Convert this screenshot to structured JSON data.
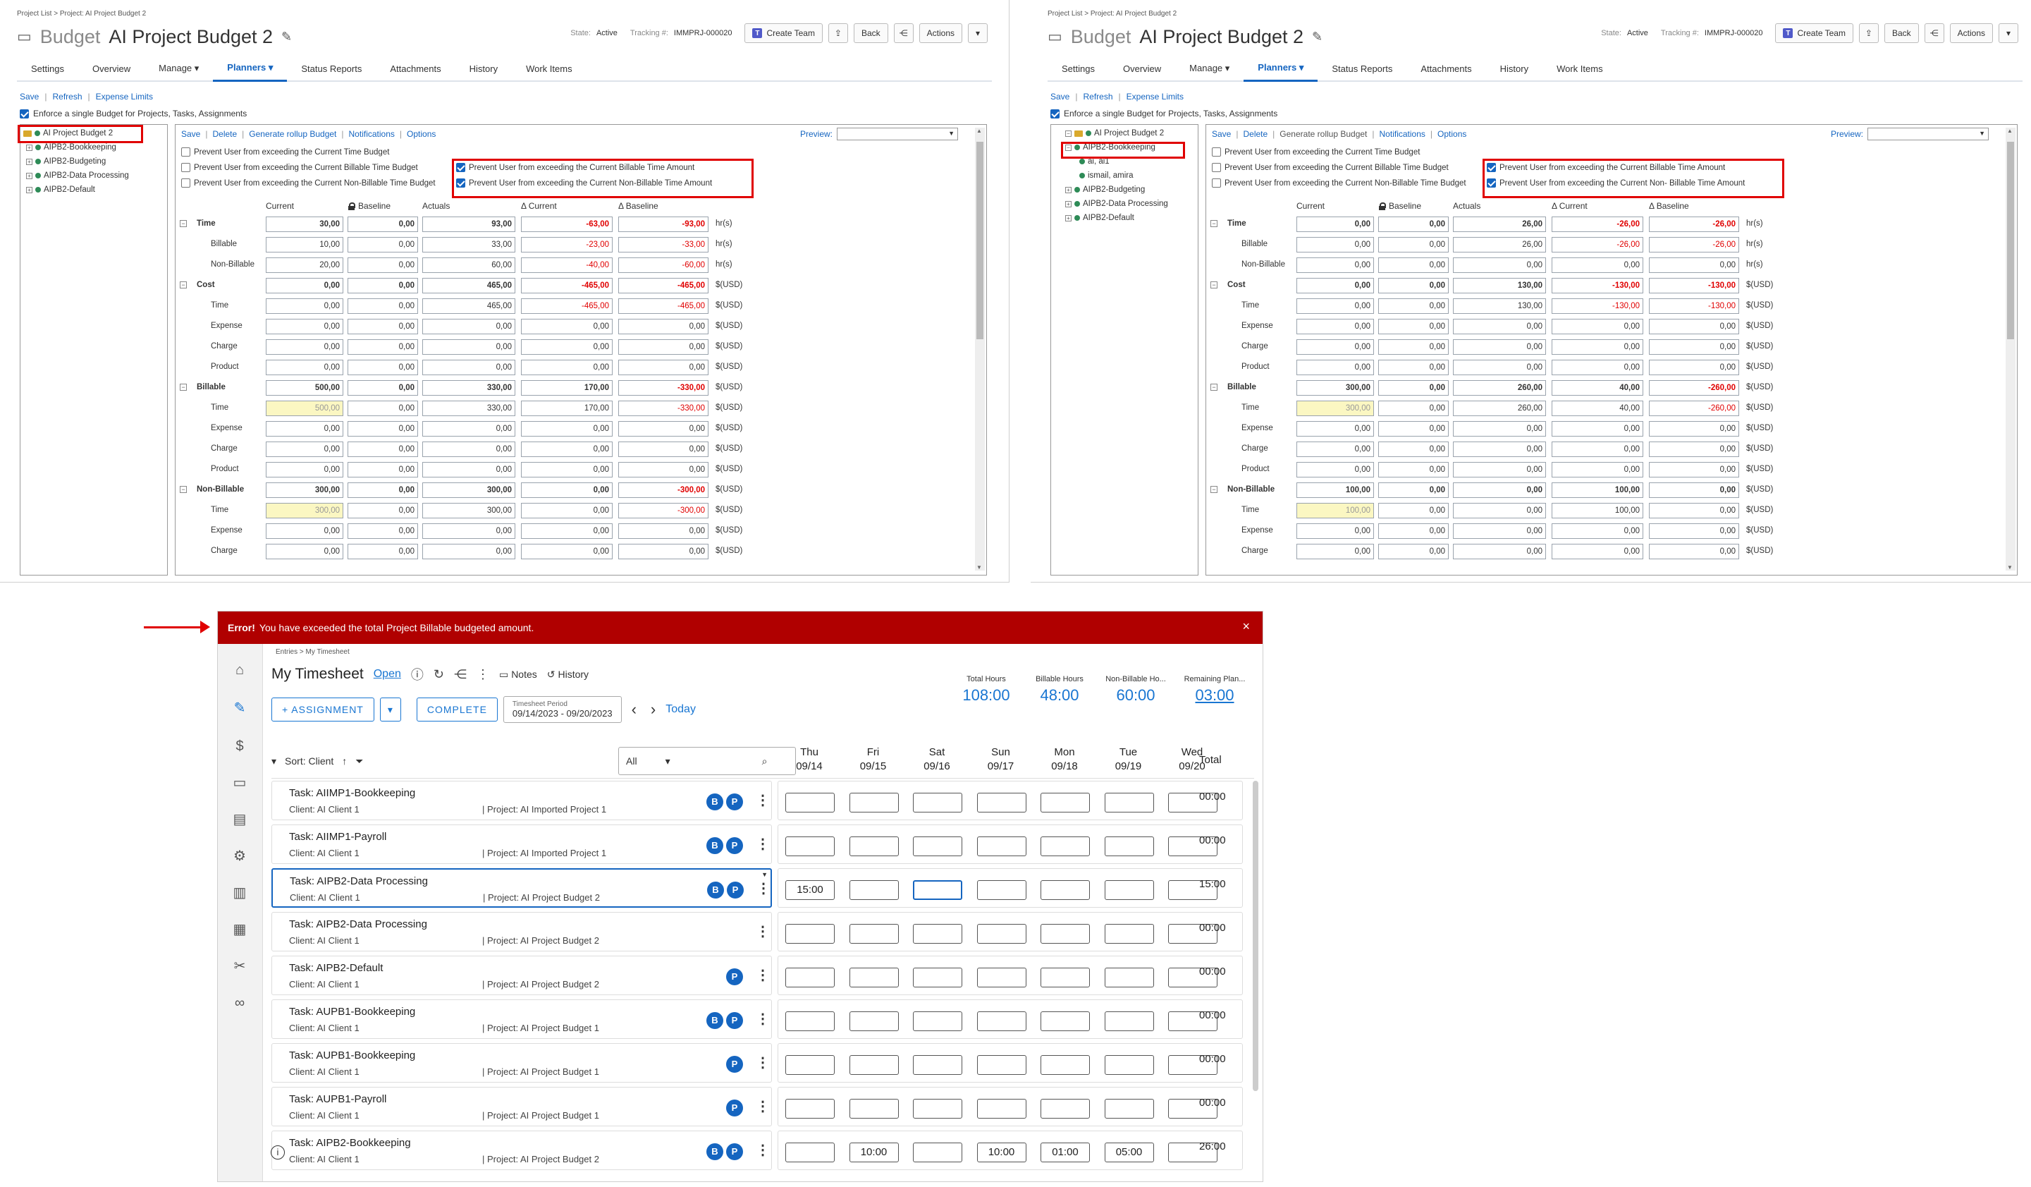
{
  "left_panel": {
    "breadcrumb": "Project List > Project: AI Project Budget 2",
    "title_prefix": "Budget",
    "title": "AI Project Budget 2",
    "state_label": "State:",
    "state_value": "Active",
    "tracking_label": "Tracking #:",
    "tracking_value": "IMMPRJ-000020",
    "create_team": "Create Team",
    "back": "Back",
    "actions": "Actions",
    "tabs": [
      "Settings",
      "Overview",
      "Manage ▾",
      "Planners ▾",
      "Status Reports",
      "Attachments",
      "History",
      "Work Items"
    ],
    "links": [
      "Save",
      "Refresh",
      "Expense Limits"
    ],
    "enforce": "Enforce a single Budget for Projects, Tasks, Assignments",
    "tree": [
      "AI Project Budget 2",
      "AIPB2-Bookkeeping",
      "AIPB2-Budgeting",
      "AIPB2-Data Processing",
      "AIPB2-Default"
    ],
    "main_links": [
      "Save",
      "Delete",
      "Generate rollup Budget",
      "Notifications",
      "Options"
    ],
    "preview": "Preview:",
    "options": [
      "Prevent User from exceeding the Current Time Budget",
      "Prevent User from exceeding the Current Billable Time Budget",
      "Prevent User from exceeding the Current Non-Billable Time Budget"
    ],
    "options_checked": [
      "Prevent User from exceeding the Current Billable Time Amount",
      "Prevent User from exceeding the Current Non-Billable Time Amount"
    ],
    "headers": [
      "Current",
      "Baseline",
      "Actuals",
      "Δ Current",
      "Δ Baseline"
    ],
    "rows": [
      {
        "label": "Time",
        "level": 0,
        "vals": [
          "30,00",
          "0,00",
          "93,00",
          "-63,00",
          "-93,00"
        ],
        "unit": "hr(s)"
      },
      {
        "label": "Billable",
        "level": 1,
        "vals": [
          "10,00",
          "0,00",
          "33,00",
          "-23,00",
          "-33,00"
        ],
        "unit": "hr(s)"
      },
      {
        "label": "Non-Billable",
        "level": 1,
        "vals": [
          "20,00",
          "0,00",
          "60,00",
          "-40,00",
          "-60,00"
        ],
        "unit": "hr(s)"
      },
      {
        "label": "Cost",
        "level": 0,
        "vals": [
          "0,00",
          "0,00",
          "465,00",
          "-465,00",
          "-465,00"
        ],
        "unit": "$(USD)"
      },
      {
        "label": "Time",
        "level": 1,
        "vals": [
          "0,00",
          "0,00",
          "465,00",
          "-465,00",
          "-465,00"
        ],
        "unit": "$(USD)"
      },
      {
        "label": "Expense",
        "level": 1,
        "vals": [
          "0,00",
          "0,00",
          "0,00",
          "0,00",
          "0,00"
        ],
        "unit": "$(USD)"
      },
      {
        "label": "Charge",
        "level": 1,
        "vals": [
          "0,00",
          "0,00",
          "0,00",
          "0,00",
          "0,00"
        ],
        "unit": "$(USD)"
      },
      {
        "label": "Product",
        "level": 1,
        "vals": [
          "0,00",
          "0,00",
          "0,00",
          "0,00",
          "0,00"
        ],
        "unit": "$(USD)"
      },
      {
        "label": "Billable",
        "level": 0,
        "vals": [
          "500,00",
          "0,00",
          "330,00",
          "170,00",
          "-330,00"
        ],
        "unit": "$(USD)"
      },
      {
        "label": "Time",
        "level": 1,
        "vals": [
          "500,00",
          "0,00",
          "330,00",
          "170,00",
          "-330,00"
        ],
        "unit": "$(USD)",
        "hl": true
      },
      {
        "label": "Expense",
        "level": 1,
        "vals": [
          "0,00",
          "0,00",
          "0,00",
          "0,00",
          "0,00"
        ],
        "unit": "$(USD)"
      },
      {
        "label": "Charge",
        "level": 1,
        "vals": [
          "0,00",
          "0,00",
          "0,00",
          "0,00",
          "0,00"
        ],
        "unit": "$(USD)"
      },
      {
        "label": "Product",
        "level": 1,
        "vals": [
          "0,00",
          "0,00",
          "0,00",
          "0,00",
          "0,00"
        ],
        "unit": "$(USD)"
      },
      {
        "label": "Non-Billable",
        "level": 0,
        "vals": [
          "300,00",
          "0,00",
          "300,00",
          "0,00",
          "-300,00"
        ],
        "unit": "$(USD)"
      },
      {
        "label": "Time",
        "level": 1,
        "vals": [
          "300,00",
          "0,00",
          "300,00",
          "0,00",
          "-300,00"
        ],
        "unit": "$(USD)",
        "hl": true
      },
      {
        "label": "Expense",
        "level": 1,
        "vals": [
          "0,00",
          "0,00",
          "0,00",
          "0,00",
          "0,00"
        ],
        "unit": "$(USD)"
      },
      {
        "label": "Charge",
        "level": 1,
        "vals": [
          "0,00",
          "0,00",
          "0,00",
          "0,00",
          "0,00"
        ],
        "unit": "$(USD)"
      }
    ]
  },
  "right_panel": {
    "breadcrumb": "Project List > Project: AI Project Budget 2",
    "title_prefix": "Budget",
    "title": "AI Project Budget 2",
    "state_label": "State:",
    "state_value": "Active",
    "tracking_label": "Tracking #:",
    "tracking_value": "IMMPRJ-000020",
    "create_team": "Create Team",
    "back": "Back",
    "actions": "Actions",
    "tabs": [
      "Settings",
      "Overview",
      "Manage ▾",
      "Planners ▾",
      "Status Reports",
      "Attachments",
      "History",
      "Work Items"
    ],
    "links": [
      "Save",
      "Refresh",
      "Expense Limits"
    ],
    "enforce": "Enforce a single Budget for Projects, Tasks, Assignments",
    "tree": [
      "AI Project Budget 2",
      "AIPB2-Bookkeeping",
      "ai, ai1",
      "ismail, amira",
      "AIPB2-Budgeting",
      "AIPB2-Data Processing",
      "AIPB2-Default"
    ],
    "main_links": [
      "Save",
      "Delete",
      "Generate rollup Budget",
      "Notifications",
      "Options"
    ],
    "preview": "Preview:",
    "options": [
      "Prevent User from exceeding the Current Time Budget",
      "Prevent User from exceeding the Current Billable Time Budget",
      "Prevent User from exceeding the Current Non-Billable Time Budget"
    ],
    "options_checked": [
      "Prevent User from exceeding the Current Billable Time Amount",
      "Prevent User from exceeding the Current Non- Billable Time Amount"
    ],
    "headers": [
      "Current",
      "Baseline",
      "Actuals",
      "Δ Current",
      "Δ Baseline"
    ],
    "rows": [
      {
        "label": "Time",
        "level": 0,
        "vals": [
          "0,00",
          "0,00",
          "26,00",
          "-26,00",
          "-26,00"
        ],
        "unit": "hr(s)"
      },
      {
        "label": "Billable",
        "level": 1,
        "vals": [
          "0,00",
          "0,00",
          "26,00",
          "-26,00",
          "-26,00"
        ],
        "unit": "hr(s)"
      },
      {
        "label": "Non-Billable",
        "level": 1,
        "vals": [
          "0,00",
          "0,00",
          "0,00",
          "0,00",
          "0,00"
        ],
        "unit": "hr(s)"
      },
      {
        "label": "Cost",
        "level": 0,
        "vals": [
          "0,00",
          "0,00",
          "130,00",
          "-130,00",
          "-130,00"
        ],
        "unit": "$(USD)"
      },
      {
        "label": "Time",
        "level": 1,
        "vals": [
          "0,00",
          "0,00",
          "130,00",
          "-130,00",
          "-130,00"
        ],
        "unit": "$(USD)"
      },
      {
        "label": "Expense",
        "level": 1,
        "vals": [
          "0,00",
          "0,00",
          "0,00",
          "0,00",
          "0,00"
        ],
        "unit": "$(USD)"
      },
      {
        "label": "Charge",
        "level": 1,
        "vals": [
          "0,00",
          "0,00",
          "0,00",
          "0,00",
          "0,00"
        ],
        "unit": "$(USD)"
      },
      {
        "label": "Product",
        "level": 1,
        "vals": [
          "0,00",
          "0,00",
          "0,00",
          "0,00",
          "0,00"
        ],
        "unit": "$(USD)"
      },
      {
        "label": "Billable",
        "level": 0,
        "vals": [
          "300,00",
          "0,00",
          "260,00",
          "40,00",
          "-260,00"
        ],
        "unit": "$(USD)"
      },
      {
        "label": "Time",
        "level": 1,
        "vals": [
          "300,00",
          "0,00",
          "260,00",
          "40,00",
          "-260,00"
        ],
        "unit": "$(USD)",
        "hl": true
      },
      {
        "label": "Expense",
        "level": 1,
        "vals": [
          "0,00",
          "0,00",
          "0,00",
          "0,00",
          "0,00"
        ],
        "unit": "$(USD)"
      },
      {
        "label": "Charge",
        "level": 1,
        "vals": [
          "0,00",
          "0,00",
          "0,00",
          "0,00",
          "0,00"
        ],
        "unit": "$(USD)"
      },
      {
        "label": "Product",
        "level": 1,
        "vals": [
          "0,00",
          "0,00",
          "0,00",
          "0,00",
          "0,00"
        ],
        "unit": "$(USD)"
      },
      {
        "label": "Non-Billable",
        "level": 0,
        "vals": [
          "100,00",
          "0,00",
          "0,00",
          "100,00",
          "0,00"
        ],
        "unit": "$(USD)"
      },
      {
        "label": "Time",
        "level": 1,
        "vals": [
          "100,00",
          "0,00",
          "0,00",
          "100,00",
          "0,00"
        ],
        "unit": "$(USD)",
        "hl": true
      },
      {
        "label": "Expense",
        "level": 1,
        "vals": [
          "0,00",
          "0,00",
          "0,00",
          "0,00",
          "0,00"
        ],
        "unit": "$(USD)"
      },
      {
        "label": "Charge",
        "level": 1,
        "vals": [
          "0,00",
          "0,00",
          "0,00",
          "0,00",
          "0,00"
        ],
        "unit": "$(USD)"
      }
    ]
  },
  "timesheet": {
    "error_strong": "Error!",
    "error_text": "You have exceeded the total Project Billable budgeted amount.",
    "close": "×",
    "breadcrumb": "Entries > My Timesheet",
    "title": "My Timesheet",
    "status": "Open",
    "notes": "Notes",
    "history": "History",
    "assignment": "+ ASSIGNMENT",
    "complete": "COMPLETE",
    "period_label": "Timesheet Period",
    "period_value": "09/14/2023 - 09/20/2023",
    "today": "Today",
    "totals": [
      {
        "label": "Total Hours",
        "value": "108:00"
      },
      {
        "label": "Billable Hours",
        "value": "48:00"
      },
      {
        "label": "Non-Billable Ho...",
        "value": "60:00"
      },
      {
        "label": "Remaining Plan...",
        "value": "03:00"
      }
    ],
    "sort": "Sort: Client",
    "filter": "All",
    "days": [
      {
        "d": "Thu",
        "date": "09/14"
      },
      {
        "d": "Fri",
        "date": "09/15"
      },
      {
        "d": "Sat",
        "date": "09/16"
      },
      {
        "d": "Sun",
        "date": "09/17"
      },
      {
        "d": "Mon",
        "date": "09/18"
      },
      {
        "d": "Tue",
        "date": "09/19"
      },
      {
        "d": "Wed",
        "date": "09/20"
      }
    ],
    "total_header": "Total",
    "rows": [
      {
        "task": "Task: AIIMP1-Bookkeeping",
        "client": "Client: AI Client 1",
        "project": "| Project: AI Imported Project 1",
        "badges": [
          "B",
          "P"
        ],
        "hours": [
          "",
          "",
          "",
          "",
          "",
          "",
          ""
        ],
        "total": "00:00"
      },
      {
        "task": "Task: AIIMP1-Payroll",
        "client": "Client: AI Client 1",
        "project": "| Project: AI Imported Project 1",
        "badges": [
          "B",
          "P"
        ],
        "hours": [
          "",
          "",
          "",
          "",
          "",
          "",
          ""
        ],
        "total": "00:00"
      },
      {
        "task": "Task: AIPB2-Data Processing",
        "client": "Client: AI Client 1",
        "project": "| Project: AI Project Budget 2",
        "badges": [
          "B",
          "P"
        ],
        "hours": [
          "15:00",
          "",
          "",
          "",
          "",
          "",
          ""
        ],
        "total": "15:00",
        "selected": true
      },
      {
        "task": "Task: AIPB2-Data Processing",
        "client": "Client: AI Client 1",
        "project": "| Project: AI Project Budget 2",
        "badges": [],
        "hours": [
          "",
          "",
          "",
          "",
          "",
          "",
          ""
        ],
        "total": "00:00"
      },
      {
        "task": "Task: AIPB2-Default",
        "client": "Client: AI Client 1",
        "project": "| Project: AI Project Budget 2",
        "badges": [
          "P"
        ],
        "hours": [
          "",
          "",
          "",
          "",
          "",
          "",
          ""
        ],
        "total": "00:00"
      },
      {
        "task": "Task: AUPB1-Bookkeeping",
        "client": "Client: AI Client 1",
        "project": "| Project: AI Project Budget 1",
        "badges": [
          "B",
          "P"
        ],
        "hours": [
          "",
          "",
          "",
          "",
          "",
          "",
          ""
        ],
        "total": "00:00"
      },
      {
        "task": "Task: AUPB1-Bookkeeping",
        "client": "Client: AI Client 1",
        "project": "| Project: AI Project Budget 1",
        "badges": [
          "P"
        ],
        "hours": [
          "",
          "",
          "",
          "",
          "",
          "",
          ""
        ],
        "total": "00:00"
      },
      {
        "task": "Task: AUPB1-Payroll",
        "client": "Client: AI Client 1",
        "project": "| Project: AI Project Budget 1",
        "badges": [
          "P"
        ],
        "hours": [
          "",
          "",
          "",
          "",
          "",
          "",
          ""
        ],
        "total": "00:00"
      },
      {
        "task": "Task: AIPB2-Bookkeeping",
        "client": "Client: AI Client 1",
        "project": "| Project: AI Project Budget 2",
        "badges": [
          "B",
          "P"
        ],
        "hours": [
          "",
          "10:00",
          "",
          "10:00",
          "01:00",
          "05:00",
          ""
        ],
        "total": "26:00",
        "info": true
      }
    ]
  }
}
